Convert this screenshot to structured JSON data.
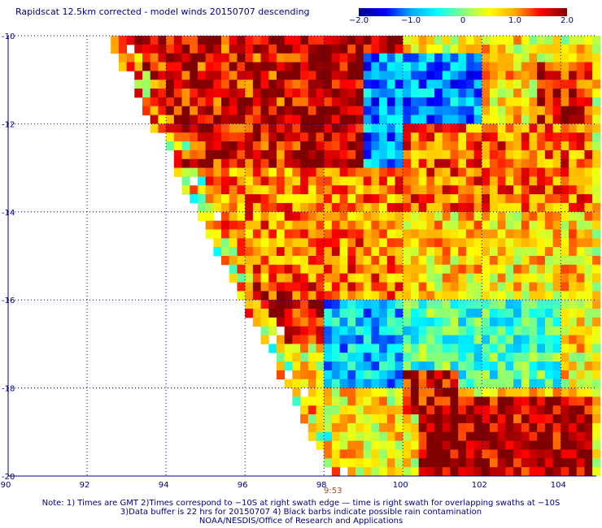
{
  "header": {
    "title": "Rapidscat 12.5km corrected - model winds 20150707 descending"
  },
  "colorbar": {
    "ticks": [
      {
        "label": "−2.0",
        "value": -2.0
      },
      {
        "label": "−1.0",
        "value": -1.0
      },
      {
        "label": "0",
        "value": 0
      },
      {
        "label": "1.0",
        "value": 1.0
      },
      {
        "label": "2.0",
        "value": 2.0
      }
    ],
    "colors": [
      "#00008f",
      "#0000ff",
      "#00aaff",
      "#00ffff",
      "#80ff80",
      "#ffff00",
      "#ffaa00",
      "#ff0000",
      "#800000"
    ]
  },
  "time_label": "9:53",
  "notes": {
    "line1": "Note: 1) Times are GMT 2)Times correspond to −10S at right swath edge — time is right swath for overlapping swaths at −10S",
    "line2": "3)Data buffer is 22 hrs for 20150707 4) Black barbs indicate possible rain contamination",
    "line3": "NOAA/NESDIS/Office of Research and Applications"
  },
  "chart_data": {
    "type": "heatmap",
    "title": "Rapidscat 12.5km corrected - model winds 20150707 descending",
    "xlabel": "",
    "ylabel": "",
    "x_ticks": [
      "90",
      "92",
      "94",
      "96",
      "98",
      "100",
      "102",
      "104"
    ],
    "x_tick_values": [
      90,
      92,
      94,
      96,
      98,
      100,
      102,
      104
    ],
    "y_ticks": [
      "-10",
      "-12",
      "-14",
      "-16",
      "-18",
      "-20"
    ],
    "y_tick_values": [
      -10,
      -12,
      -14,
      -16,
      -18,
      -20
    ],
    "xlim": [
      90,
      104.9
    ],
    "ylim": [
      -20,
      -10
    ],
    "value_range": [
      -2.0,
      2.0
    ],
    "grid": true,
    "cell_size_deg": 0.2,
    "swath_edge": [
      [
        92.5,
        -10
      ],
      [
        98.2,
        -20
      ]
    ],
    "regions": [
      {
        "lon": [
          92.5,
          97.5
        ],
        "lat": [
          -13,
          -10
        ],
        "value": 1.6
      },
      {
        "lon": [
          97.5,
          100
        ],
        "lat": [
          -11.5,
          -10
        ],
        "value": 1.8
      },
      {
        "lon": [
          97.5,
          100
        ],
        "lat": [
          -13.5,
          -11.5
        ],
        "value": 1.9
      },
      {
        "lon": [
          99,
          103
        ],
        "lat": [
          -13,
          -10.4
        ],
        "value": -1.0
      },
      {
        "lon": [
          102,
          104.9
        ],
        "lat": [
          -12,
          -10.4
        ],
        "value": 0.7
      },
      {
        "lon": [
          103.5,
          104.9
        ],
        "lat": [
          -12,
          -10.6
        ],
        "value": 1.5
      },
      {
        "lon": [
          100,
          104.9
        ],
        "lat": [
          -14,
          -12
        ],
        "value": 1.2
      },
      {
        "lon": [
          95,
          100
        ],
        "lat": [
          -16,
          -13
        ],
        "value": 1.1
      },
      {
        "lon": [
          100,
          104.9
        ],
        "lat": [
          -16,
          -14
        ],
        "value": 0.7
      },
      {
        "lon": [
          98,
          100
        ],
        "lat": [
          -18,
          -16
        ],
        "value": -0.8
      },
      {
        "lon": [
          100,
          104
        ],
        "lat": [
          -18,
          -16
        ],
        "value": -0.3
      },
      {
        "lon": [
          96,
          98
        ],
        "lat": [
          -17,
          -15.5
        ],
        "value": 1.6
      },
      {
        "lon": [
          98,
          101
        ],
        "lat": [
          -20,
          -18
        ],
        "value": 0.6
      },
      {
        "lon": [
          100.5,
          104.9
        ],
        "lat": [
          -20,
          -18.2
        ],
        "value": 1.8
      },
      {
        "lon": [
          100,
          101.5
        ],
        "lat": [
          -18.6,
          -17.6
        ],
        "value": 1.7
      }
    ]
  }
}
